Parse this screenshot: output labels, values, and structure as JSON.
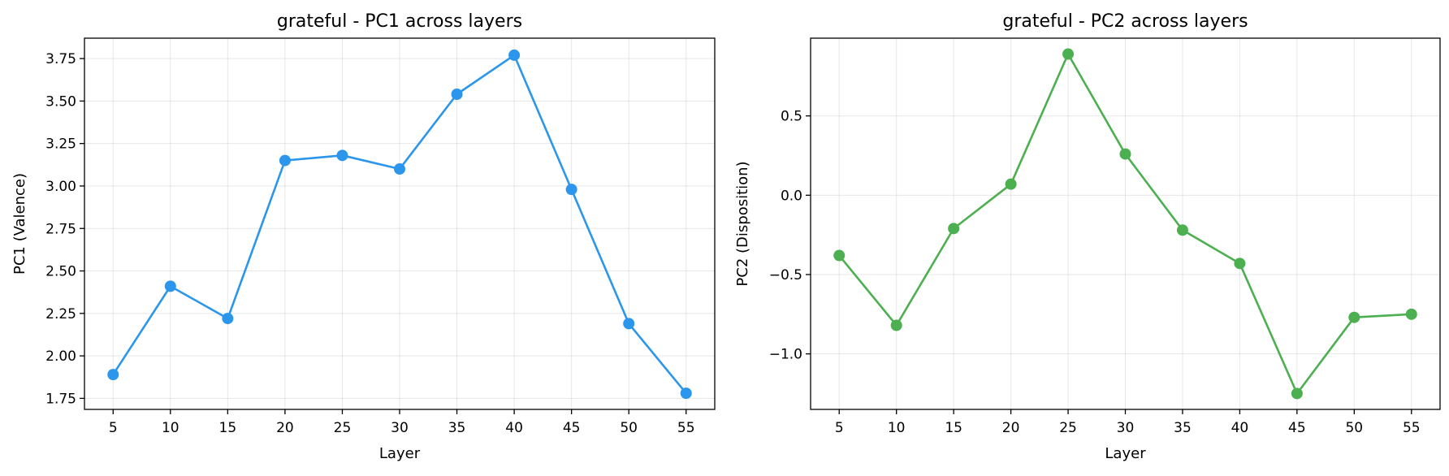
{
  "chart_data": [
    {
      "type": "line",
      "title": "grateful - PC1 across layers",
      "xlabel": "Layer",
      "ylabel": "PC1 (Valence)",
      "x": [
        5,
        10,
        15,
        20,
        25,
        30,
        35,
        40,
        45,
        50,
        55
      ],
      "xticks": [
        "5",
        "10",
        "15",
        "20",
        "25",
        "30",
        "35",
        "40",
        "45",
        "50",
        "55"
      ],
      "xlim": [
        2.5,
        57.5
      ],
      "ylim": [
        1.685,
        3.87
      ],
      "yticks": [
        1.75,
        2.0,
        2.25,
        2.5,
        2.75,
        3.0,
        3.25,
        3.5,
        3.75
      ],
      "ytick_labels": [
        "1.75",
        "2.00",
        "2.25",
        "2.50",
        "2.75",
        "3.00",
        "3.25",
        "3.50",
        "3.75"
      ],
      "grid": true,
      "series": [
        {
          "values": [
            1.89,
            2.41,
            2.22,
            3.15,
            3.18,
            3.1,
            3.54,
            3.77,
            2.98,
            2.19,
            1.78
          ],
          "color": "#2b96eb"
        }
      ]
    },
    {
      "type": "line",
      "title": "grateful - PC2 across layers",
      "xlabel": "Layer",
      "ylabel": "PC2 (Disposition)",
      "x": [
        5,
        10,
        15,
        20,
        25,
        30,
        35,
        40,
        45,
        50,
        55
      ],
      "xticks": [
        "5",
        "10",
        "15",
        "20",
        "25",
        "30",
        "35",
        "40",
        "45",
        "50",
        "55"
      ],
      "xlim": [
        2.5,
        57.5
      ],
      "ylim": [
        -1.35,
        0.99
      ],
      "yticks": [
        -1.0,
        -0.5,
        0.0,
        0.5
      ],
      "ytick_labels": [
        "−1.0",
        "−0.5",
        "0.0",
        "0.5"
      ],
      "grid": true,
      "series": [
        {
          "values": [
            -0.38,
            -0.82,
            -0.21,
            0.07,
            0.89,
            0.26,
            -0.22,
            -0.43,
            -1.25,
            -0.77,
            -0.75
          ],
          "color": "#4caf50"
        }
      ]
    }
  ]
}
